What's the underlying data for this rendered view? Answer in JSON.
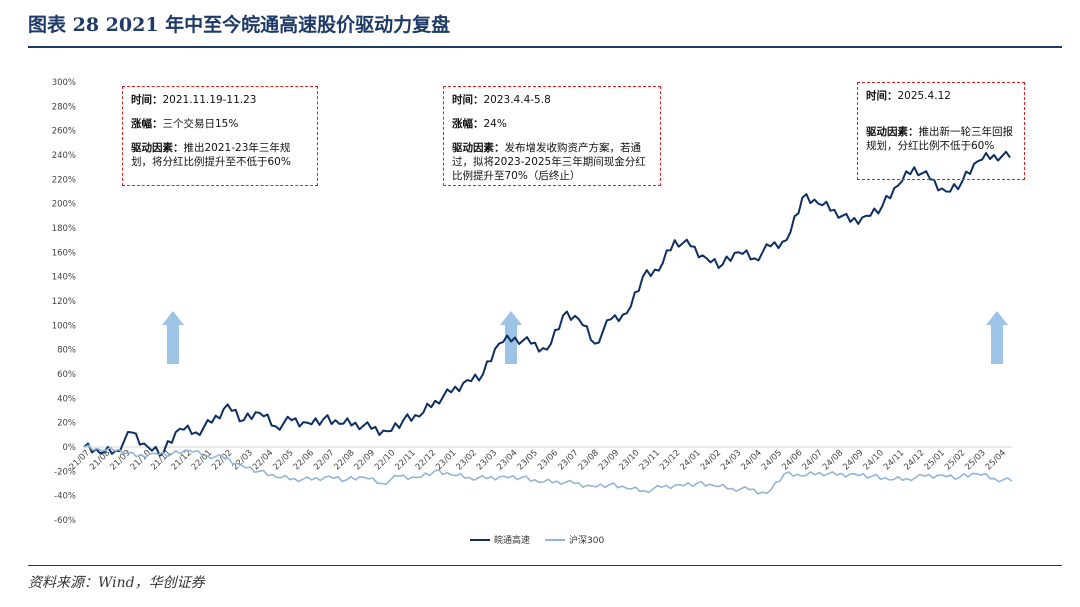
{
  "figure": {
    "title": "图表 28   2021 年中至今皖通高速股价驱动力复盘",
    "source": "资料来源：Wind，华创证券"
  },
  "annotations": [
    {
      "time_label": "时间：",
      "time": "2021.11.19-11.23",
      "change_label": "涨幅：",
      "change": "三个交易日15%",
      "driver_label": "驱动因素：",
      "driver": "推出2021-23年三年规划，将分红比例提升至不低于60%"
    },
    {
      "time_label": "时间：",
      "time": "2023.4.4-5.8",
      "change_label": "涨幅：",
      "change": "24%",
      "driver_label": "驱动因素：",
      "driver": "发布增发收购资产方案，若通过，拟将2023-2025年三年期间现金分红比例提升至70%（后终止）"
    },
    {
      "time_label": "时间：",
      "time": "2025.4.12",
      "driver_label": "驱动因素：",
      "driver": "推出新一轮三年回报规划，分红比例不低于60%"
    }
  ],
  "colors": {
    "series1": "#0d2f63",
    "series2": "#93b4d9",
    "arrow": "#9dc3e6",
    "frame": "#1f3a66",
    "box": "#e02020"
  },
  "chart_data": {
    "type": "line",
    "ylim": [
      -60,
      300
    ],
    "yticks": [
      "300%",
      "280%",
      "260%",
      "240%",
      "220%",
      "200%",
      "180%",
      "160%",
      "140%",
      "120%",
      "100%",
      "80%",
      "60%",
      "40%",
      "20%",
      "0%",
      "-20%",
      "-40%",
      "-60%"
    ],
    "x_ticks": [
      "21/07",
      "21/08",
      "21/09",
      "21/10",
      "21/11",
      "21/12",
      "22/01",
      "22/02",
      "22/03",
      "22/04",
      "22/05",
      "22/06",
      "22/07",
      "22/08",
      "22/09",
      "22/10",
      "22/11",
      "22/12",
      "23/01",
      "23/02",
      "23/03",
      "23/04",
      "23/05",
      "23/06",
      "23/07",
      "23/08",
      "23/09",
      "23/10",
      "23/11",
      "23/12",
      "24/01",
      "24/02",
      "24/03",
      "24/04",
      "24/05",
      "24/06",
      "24/07",
      "24/08",
      "24/09",
      "24/10",
      "24/11",
      "24/12",
      "25/01",
      "25/02",
      "25/03",
      "25/04"
    ],
    "series": [
      {
        "name": "皖通高速",
        "color": "#0d2f63",
        "values": [
          0,
          -5,
          -3,
          12,
          0,
          -4,
          15,
          12,
          20,
          35,
          22,
          28,
          17,
          22,
          20,
          23,
          19,
          20,
          15,
          13,
          22,
          25,
          38,
          45,
          55,
          60,
          85,
          90,
          85,
          80,
          108,
          105,
          85,
          105,
          110,
          140,
          145,
          170,
          165,
          155,
          150,
          160,
          155,
          165,
          170,
          205,
          200,
          195,
          185,
          190,
          198,
          215,
          230,
          220,
          210,
          218,
          235,
          240,
          238
        ]
      },
      {
        "name": "沪深300",
        "color": "#93b4d9",
        "values": [
          0,
          -3,
          -2,
          -8,
          -5,
          -6,
          -3,
          -7,
          -9,
          -15,
          -20,
          -25,
          -26,
          -27,
          -24,
          -27,
          -25,
          -30,
          -24,
          -25,
          -20,
          -23,
          -25,
          -26,
          -24,
          -25,
          -29,
          -28,
          -30,
          -32,
          -31,
          -34,
          -36,
          -33,
          -31,
          -30,
          -32,
          -34,
          -35,
          -38,
          -22,
          -24,
          -21,
          -23,
          -22,
          -24,
          -27,
          -26,
          -24,
          -23,
          -25,
          -22,
          -26,
          -28
        ]
      }
    ],
    "legend_position": "bottom-center",
    "grid": false
  }
}
